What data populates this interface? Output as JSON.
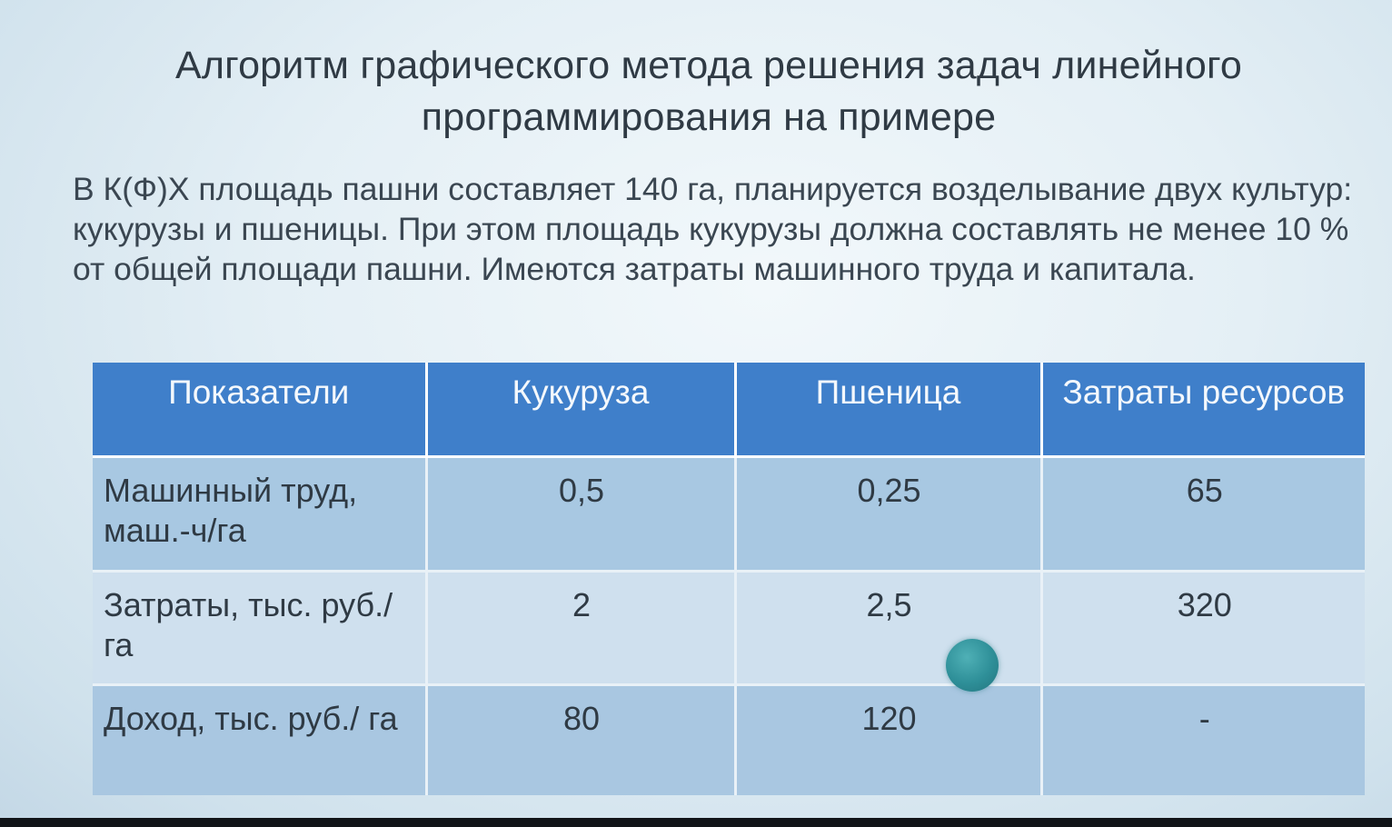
{
  "slide": {
    "title": "Алгоритм графического метода решения задач линейного программирования на примере",
    "paragraph": "В К(Ф)Х площадь пашни составляет 140 га, планируется возделывание двух культур: кукурузы и пшеницы. При этом площадь кукурузы должна составлять не менее 10 % от общей площади пашни. Имеются затраты машинного труда и капитала."
  },
  "table": {
    "headers": [
      "Показатели",
      "Кукуруза",
      "Пшеница",
      "Затраты ресурсов"
    ],
    "rows": [
      {
        "label": "Машинный труд, маш.-ч/га",
        "corn": "0,5",
        "wheat": "0,25",
        "resources": "65"
      },
      {
        "label": "Затраты, тыс. руб./га",
        "corn": "2",
        "wheat": "2,5",
        "resources": "320"
      },
      {
        "label": "Доход, тыс. руб./ га",
        "corn": "80",
        "wheat": "120",
        "resources": "-"
      }
    ]
  },
  "colors": {
    "header_bg": "#3f7fca",
    "row_dark": "#a8c8e2",
    "row_light": "#cfe0ee",
    "pointer_dot": "#2e8f98"
  }
}
